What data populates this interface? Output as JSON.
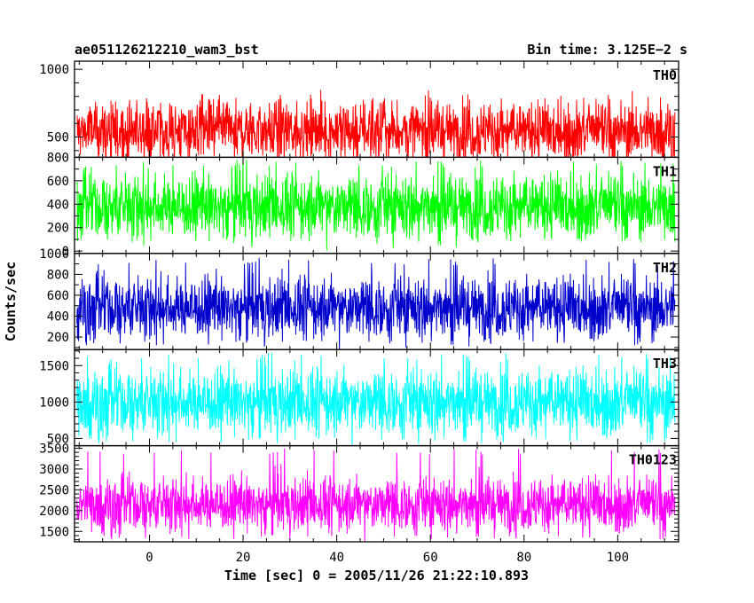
{
  "chart_data": {
    "type": "line",
    "title_left": "ae051126212210_wam3_bst",
    "title_right": "Bin time: 3.125E−2 s",
    "xlabel": "Time [sec] 0 = 2005/11/26 21:22:10.893",
    "ylabel": "Counts/sec",
    "xlim": [
      -16,
      113
    ],
    "xrange_data": [
      -15.5,
      112.2
    ],
    "xticks": [
      0,
      20,
      40,
      60,
      80,
      100
    ],
    "x_minor_step": 5,
    "panels": [
      {
        "name": "TH0",
        "color": "#ff0000",
        "ylim": [
          350,
          1060
        ],
        "yticks": [
          500,
          1000
        ],
        "y_minor_step": 100,
        "typical_range": [
          270,
          820
        ],
        "mean": 545,
        "spread": 110
      },
      {
        "name": "TH1",
        "color": "#00ff00",
        "ylim": [
          -20,
          800
        ],
        "yticks": [
          0,
          200,
          400,
          600,
          800
        ],
        "y_minor_step": 100,
        "typical_range": [
          80,
          780
        ],
        "mean": 380,
        "spread": 140
      },
      {
        "name": "TH2",
        "color": "#0000cc",
        "ylim": [
          80,
          1000
        ],
        "yticks": [
          200,
          400,
          600,
          800,
          1000
        ],
        "y_minor_step": 100,
        "typical_range": [
          120,
          960
        ],
        "mean": 480,
        "spread": 150
      },
      {
        "name": "TH3",
        "color": "#00ffff",
        "ylim": [
          400,
          1720
        ],
        "yticks": [
          500,
          1000,
          1500
        ],
        "y_minor_step": 100,
        "typical_range": [
          430,
          1680
        ],
        "mean": 1000,
        "spread": 230
      },
      {
        "name": "TH0123",
        "color": "#ff00ff",
        "ylim": [
          1250,
          3560
        ],
        "yticks": [
          1500,
          2000,
          2500,
          3000,
          3500
        ],
        "y_minor_step": 100,
        "typical_range": [
          1300,
          3500
        ],
        "mean": 2150,
        "spread": 330
      }
    ]
  }
}
